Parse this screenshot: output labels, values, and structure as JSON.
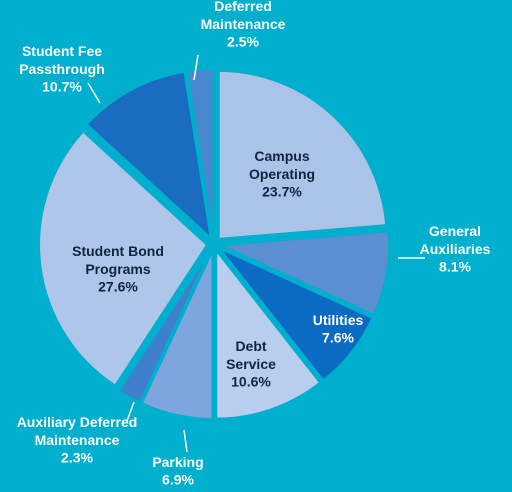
{
  "chart_data": {
    "type": "pie",
    "categories": [
      "Campus Operating",
      "General Auxiliaries",
      "Utilities",
      "Debt Service",
      "Parking",
      "Auxiliary Deferred Maintenance",
      "Student Bond Programs",
      "Student Fee Passthrough",
      "Deferred Maintenance"
    ],
    "values": [
      23.7,
      8.1,
      7.6,
      10.6,
      6.9,
      2.3,
      27.6,
      10.7,
      2.5
    ],
    "value_labels": [
      "23.7%",
      "8.1%",
      "7.6%",
      "10.6%",
      "6.9%",
      "2.3%",
      "27.6%",
      "10.7%",
      "2.5%"
    ],
    "colors": [
      "#a9c3e9",
      "#5b8fd2",
      "#0b6bc3",
      "#b9cdef",
      "#7ea6de",
      "#3f7fcc",
      "#adc6ea",
      "#1a6cc0",
      "#4a88d0"
    ]
  }
}
